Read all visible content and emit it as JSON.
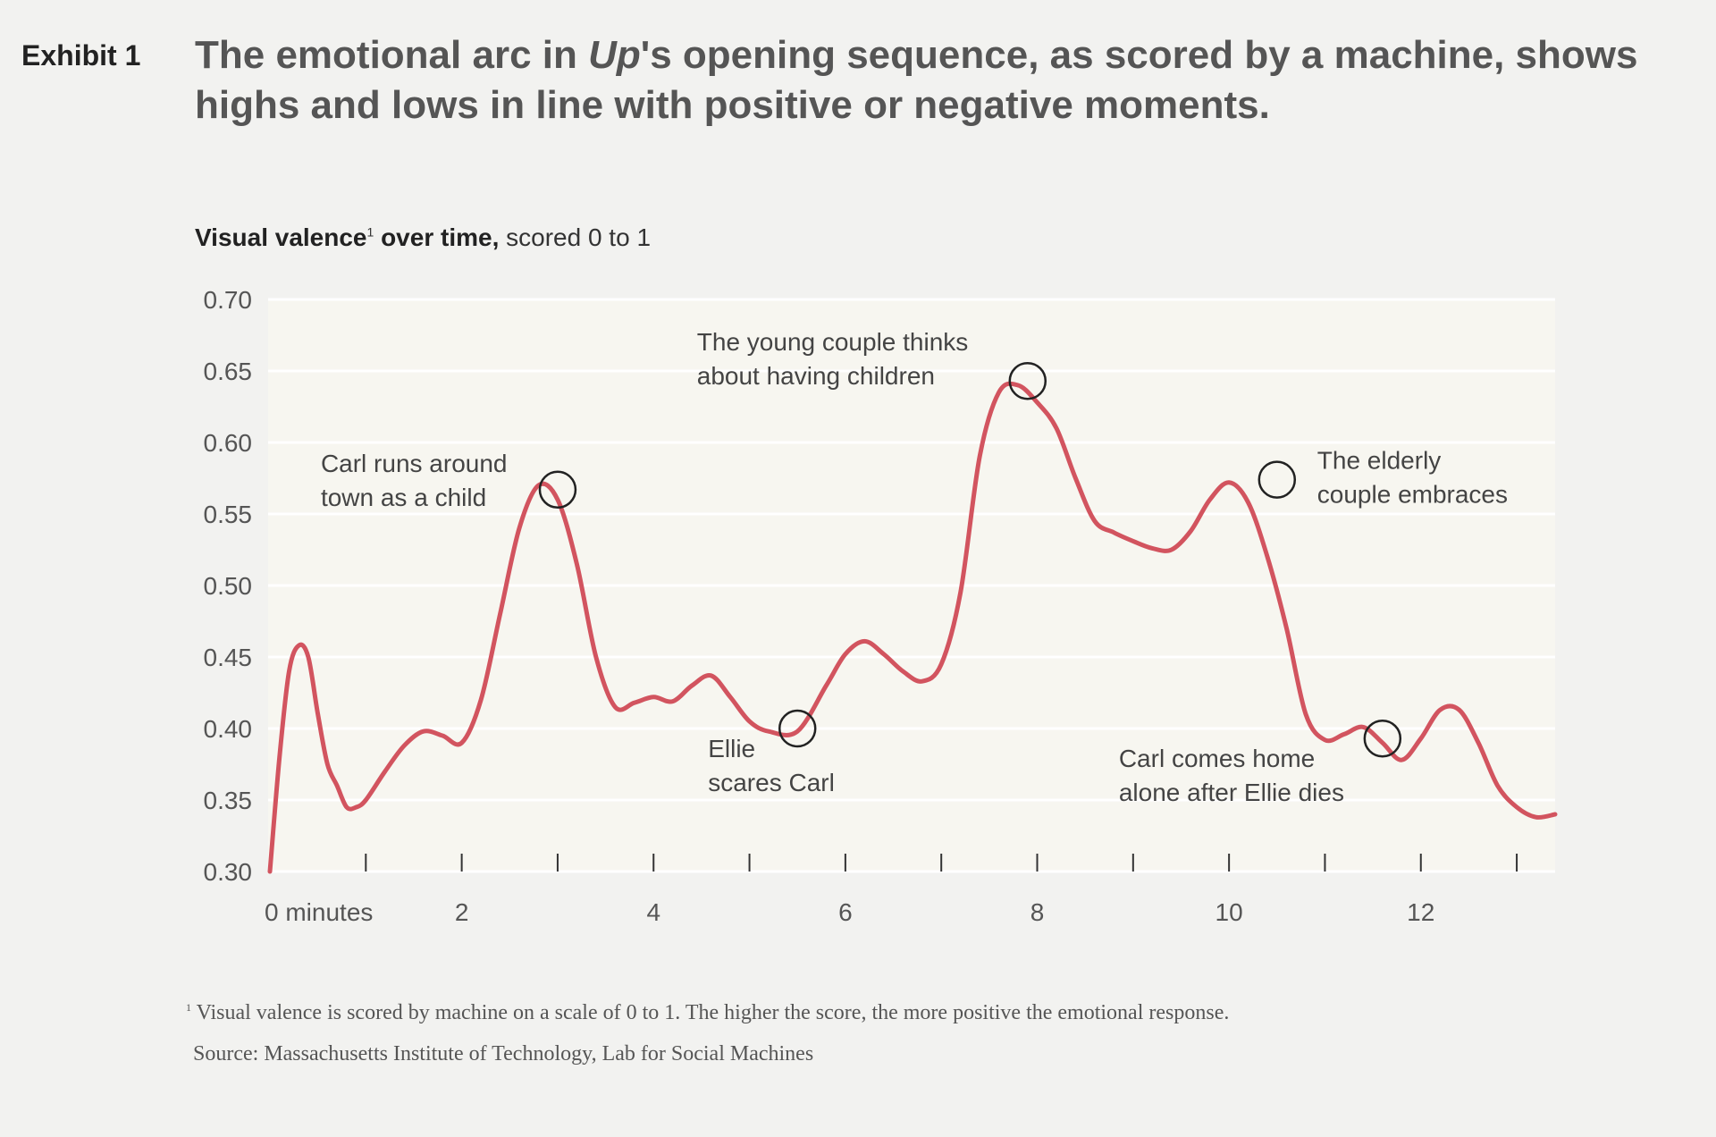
{
  "header": {
    "exhibit": "Exhibit 1",
    "title_pre": "The emotional arc in ",
    "title_em": "Up",
    "title_post": "'s opening sequence, as scored by a machine, shows highs and lows in line with positive or negative moments."
  },
  "subtitle": {
    "bold": "Visual valence",
    "sup": "1",
    "bold2": " over time,",
    "rest": " scored 0 to 1"
  },
  "chart_data": {
    "type": "line",
    "title": "Visual valence over time, scored 0 to 1",
    "xlabel": "minutes",
    "ylabel": "Visual valence",
    "xlim": [
      0,
      13.4
    ],
    "ylim": [
      0.3,
      0.7
    ],
    "grid": true,
    "yticks": [
      0.3,
      0.35,
      0.4,
      0.45,
      0.5,
      0.55,
      0.6,
      0.65,
      0.7
    ],
    "ytick_labels": [
      "0.30",
      "0.35",
      "0.40",
      "0.45",
      "0.50",
      "0.55",
      "0.60",
      "0.65",
      "0.70"
    ],
    "xticks_minor": [
      1,
      2,
      3,
      4,
      5,
      6,
      7,
      8,
      9,
      10,
      11,
      12,
      13
    ],
    "xtick_labels": [
      {
        "x": 0,
        "label": "0 minutes"
      },
      {
        "x": 2,
        "label": "2"
      },
      {
        "x": 4,
        "label": "4"
      },
      {
        "x": 6,
        "label": "6"
      },
      {
        "x": 8,
        "label": "8"
      },
      {
        "x": 10,
        "label": "10"
      },
      {
        "x": 12,
        "label": "12"
      }
    ],
    "line_color": "#d2545f",
    "series": [
      {
        "name": "Visual valence",
        "x": [
          0.0,
          0.1,
          0.2,
          0.3,
          0.4,
          0.5,
          0.6,
          0.7,
          0.8,
          0.9,
          1.0,
          1.2,
          1.4,
          1.6,
          1.8,
          2.0,
          2.2,
          2.4,
          2.6,
          2.8,
          3.0,
          3.2,
          3.4,
          3.6,
          3.8,
          4.0,
          4.2,
          4.4,
          4.6,
          4.8,
          5.0,
          5.2,
          5.5,
          5.8,
          6.0,
          6.2,
          6.4,
          6.6,
          6.8,
          7.0,
          7.2,
          7.4,
          7.6,
          7.8,
          8.0,
          8.2,
          8.4,
          8.6,
          8.8,
          9.0,
          9.2,
          9.4,
          9.6,
          9.8,
          10.0,
          10.2,
          10.4,
          10.6,
          10.8,
          11.0,
          11.2,
          11.4,
          11.6,
          11.8,
          12.0,
          12.2,
          12.4,
          12.6,
          12.8,
          13.0,
          13.2,
          13.4
        ],
        "y": [
          0.3,
          0.38,
          0.44,
          0.458,
          0.45,
          0.41,
          0.375,
          0.36,
          0.345,
          0.345,
          0.35,
          0.37,
          0.388,
          0.398,
          0.395,
          0.39,
          0.42,
          0.48,
          0.54,
          0.57,
          0.56,
          0.515,
          0.45,
          0.415,
          0.418,
          0.422,
          0.419,
          0.43,
          0.437,
          0.422,
          0.405,
          0.398,
          0.398,
          0.43,
          0.452,
          0.461,
          0.452,
          0.44,
          0.433,
          0.445,
          0.495,
          0.59,
          0.635,
          0.64,
          0.628,
          0.61,
          0.575,
          0.545,
          0.537,
          0.531,
          0.526,
          0.525,
          0.538,
          0.56,
          0.572,
          0.558,
          0.52,
          0.47,
          0.41,
          0.392,
          0.396,
          0.401,
          0.39,
          0.378,
          0.393,
          0.413,
          0.413,
          0.39,
          0.36,
          0.345,
          0.338,
          0.34
        ]
      }
    ],
    "annotations": [
      {
        "x": 3.0,
        "y": 0.567,
        "line1": "Carl runs around",
        "line2": "town as a child",
        "pos": "upper-left"
      },
      {
        "x": 5.5,
        "y": 0.4,
        "line1": "Ellie",
        "line2": "scares Carl",
        "pos": "lower-left"
      },
      {
        "x": 7.9,
        "y": 0.643,
        "line1": "The young couple thinks",
        "line2": "about having children",
        "pos": "upper-left"
      },
      {
        "x": 10.5,
        "y": 0.574,
        "line1": "The elderly",
        "line2": "couple embraces",
        "pos": "right"
      },
      {
        "x": 11.6,
        "y": 0.393,
        "line1": "Carl comes home",
        "line2": "alone after Ellie dies",
        "pos": "lower-left"
      }
    ]
  },
  "footer": {
    "footnote_sup": "1",
    "footnote": "Visual valence is scored by machine on a scale of 0 to 1. The higher the score, the more positive the emotional response.",
    "source": "Source: Massachusetts Institute of Technology, Lab for Social Machines"
  }
}
